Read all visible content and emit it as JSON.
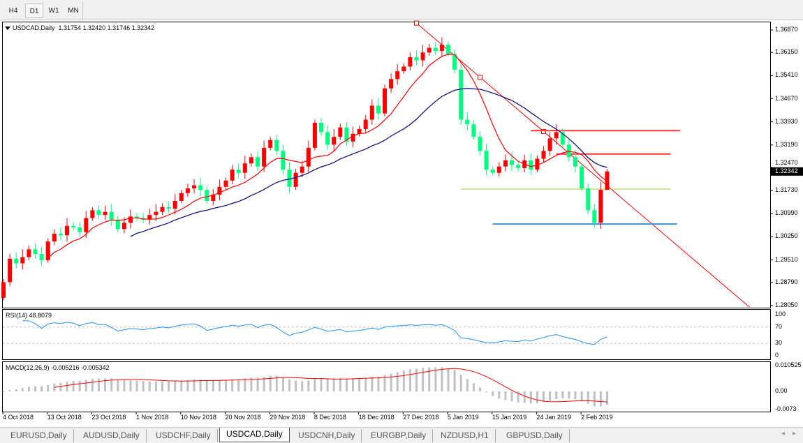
{
  "toolbar": {
    "timeframes": [
      {
        "label": "H4",
        "active": false
      },
      {
        "label": "D1",
        "active": true
      },
      {
        "label": "W1",
        "active": false
      },
      {
        "label": "MN",
        "active": false
      }
    ]
  },
  "header": {
    "symbol": "USDCAD,Daily",
    "ohlc": "1.31754 1.32420 1.31746 1.32342"
  },
  "current_price": "1.32342",
  "colors": {
    "bull": "#ff0000",
    "bear": "#00ff7f",
    "ma_fast": "#ff0000",
    "ma_slow": "#000080",
    "rsi": "#1e90ff",
    "macd_hist": "#c0c0c0",
    "macd_signal": "#ff0000"
  },
  "chart_data": [
    {
      "type": "candlestick",
      "symbol": "USDCAD",
      "timeframe": "Daily",
      "y_ticks": [
        "1.36870",
        "1.36150",
        "1.35410",
        "1.34670",
        "1.33930",
        "1.33190",
        "1.32470",
        "1.31730",
        "1.30990",
        "1.30250",
        "1.29510",
        "1.28790",
        "1.28050"
      ],
      "ylim": [
        1.2805,
        1.3687
      ],
      "date_labels": [
        {
          "bar": 0,
          "text": "4 Oct 2018"
        },
        {
          "bar": 7,
          "text": "13 Oct 2018"
        },
        {
          "bar": 14,
          "text": "23 Oct 2018"
        },
        {
          "bar": 21,
          "text": "1 Nov 2018"
        },
        {
          "bar": 28,
          "text": "10 Nov 2018"
        },
        {
          "bar": 35,
          "text": "20 Nov 2018"
        },
        {
          "bar": 42,
          "text": "29 Nov 2018"
        },
        {
          "bar": 49,
          "text": "8 Dec 2018"
        },
        {
          "bar": 56,
          "text": "18 Dec 2018"
        },
        {
          "bar": 63,
          "text": "27 Dec 2018"
        },
        {
          "bar": 70,
          "text": "5 Jan 2019"
        },
        {
          "bar": 77,
          "text": "15 Jan 2019"
        },
        {
          "bar": 84,
          "text": "24 Jan 2019"
        },
        {
          "bar": 91,
          "text": "2 Feb 2019"
        }
      ],
      "first_open": 1.283,
      "closes": [
        1.288,
        1.2955,
        1.294,
        1.296,
        1.2985,
        1.297,
        1.295,
        1.301,
        1.3035,
        1.303,
        1.306,
        1.3055,
        1.304,
        1.3085,
        1.311,
        1.3095,
        1.3105,
        1.308,
        1.305,
        1.307,
        1.309,
        1.3085,
        1.308,
        1.3095,
        1.3105,
        1.312,
        1.3115,
        1.314,
        1.3165,
        1.318,
        1.319,
        1.3175,
        1.314,
        1.316,
        1.3185,
        1.3205,
        1.324,
        1.323,
        1.326,
        1.328,
        1.325,
        1.331,
        1.3335,
        1.33,
        1.324,
        1.3185,
        1.323,
        1.325,
        1.331,
        1.339,
        1.336,
        1.332,
        1.3345,
        1.3375,
        1.333,
        1.3355,
        1.337,
        1.34,
        1.3445,
        1.342,
        1.35,
        1.353,
        1.3555,
        1.357,
        1.36,
        1.359,
        1.3615,
        1.363,
        1.362,
        1.364,
        1.361,
        1.356,
        1.34,
        1.3385,
        1.3345,
        1.33,
        1.324,
        1.323,
        1.325,
        1.327,
        1.3255,
        1.3245,
        1.327,
        1.324,
        1.3275,
        1.33,
        1.334,
        1.336,
        1.332,
        1.328,
        1.325,
        1.318,
        1.311,
        1.307,
        1.31754,
        1.32342
      ],
      "last_bar": {
        "open": 1.31754,
        "high": 1.3242,
        "low": 1.31746,
        "close": 1.32342
      },
      "moving_averages": [
        {
          "period": 8,
          "color": "#ff0000"
        },
        {
          "period": 21,
          "color": "#000080"
        }
      ],
      "annotations": {
        "trendline": {
          "from": {
            "bar": 65,
            "price": 1.3709
          },
          "to": {
            "bar": 117.4,
            "price": 1.28
          },
          "color": "#ff0000"
        },
        "hlines": [
          {
            "price": 1.3365,
            "from_bar": 83,
            "to_bar": 106.5,
            "color": "#ff3333"
          },
          {
            "price": 1.329,
            "from_bar": 87,
            "to_bar": 105,
            "color": "#ff3333"
          },
          {
            "price": 1.3178,
            "from_bar": 72,
            "to_bar": 105,
            "color": "#9acd32"
          },
          {
            "price": 1.3066,
            "from_bar": 77,
            "to_bar": 106,
            "color": "#3a8fd8"
          }
        ]
      }
    },
    {
      "type": "line",
      "title": "RSI(14) 48.8079",
      "levels": [
        "100",
        "70",
        "30",
        "0"
      ],
      "ylim": [
        0,
        100
      ]
    },
    {
      "type": "bar",
      "title": "MACD(12,26,9) -0.005216 -0.005342",
      "y_ticks": [
        "0.010525",
        "0.00",
        "-0.0073"
      ]
    }
  ],
  "tabs": [
    {
      "label": "EURUSD,Daily",
      "active": false
    },
    {
      "label": "AUDUSD,Daily",
      "active": false
    },
    {
      "label": "USDCHF,Daily",
      "active": false
    },
    {
      "label": "USDCAD,Daily",
      "active": true
    },
    {
      "label": "USDCNH,Daily",
      "active": false
    },
    {
      "label": "EURGBP,Daily",
      "active": false
    },
    {
      "label": "NZDUSD,H1",
      "active": false
    },
    {
      "label": "GBPUSD,Daily",
      "active": false
    }
  ],
  "scroll": {
    "left": "◂",
    "right": "▸"
  }
}
